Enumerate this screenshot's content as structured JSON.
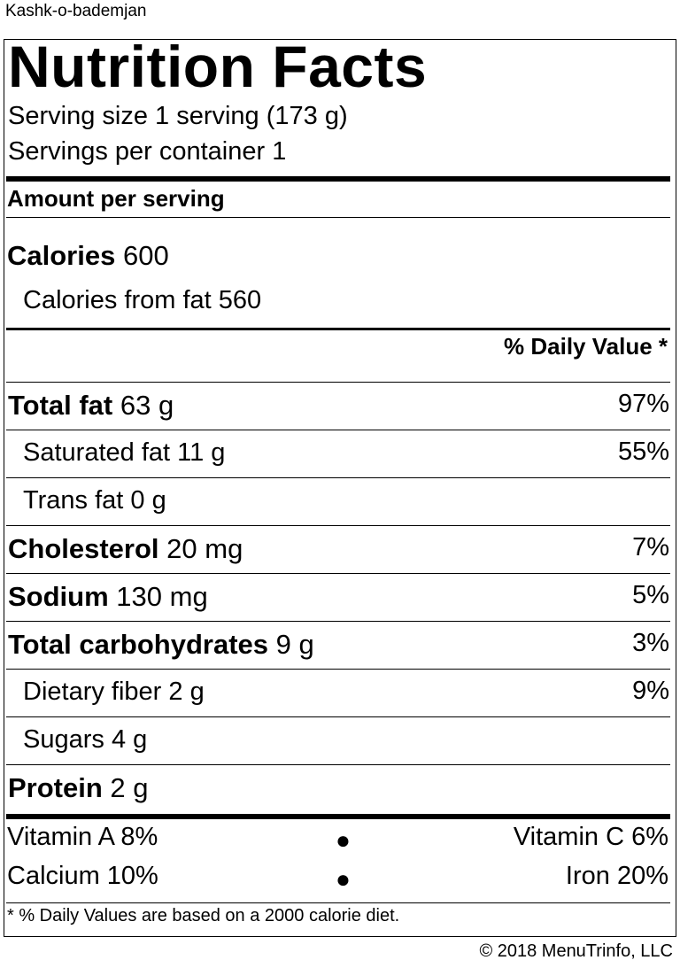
{
  "recipe_name": "Kashk-o-bademjan",
  "title": "Nutrition Facts",
  "serving_size": "Serving size 1 serving (173 g)",
  "servings_per_container": "Servings per container 1",
  "amount_per_serving": "Amount per serving",
  "calories": {
    "label": "Calories",
    "value": "600"
  },
  "calories_from_fat": "Calories from fat 560",
  "daily_value_header": "% Daily Value *",
  "nutrients": [
    {
      "name": "Total fat",
      "amount": "63 g",
      "pct": "97%",
      "bold": true,
      "sub": false
    },
    {
      "name": "Saturated fat",
      "amount": "11 g",
      "pct": "55%",
      "bold": false,
      "sub": true
    },
    {
      "name": "Trans fat",
      "amount": "0 g",
      "pct": "",
      "bold": false,
      "sub": true
    },
    {
      "name": "Cholesterol",
      "amount": "20 mg",
      "pct": "7%",
      "bold": true,
      "sub": false
    },
    {
      "name": "Sodium",
      "amount": "130 mg",
      "pct": "5%",
      "bold": true,
      "sub": false
    },
    {
      "name": "Total carbohydrates",
      "amount": "9 g",
      "pct": "3%",
      "bold": true,
      "sub": false
    },
    {
      "name": "Dietary fiber",
      "amount": "2 g",
      "pct": "9%",
      "bold": false,
      "sub": true
    },
    {
      "name": "Sugars",
      "amount": "4 g",
      "pct": "",
      "bold": false,
      "sub": true
    },
    {
      "name": "Protein",
      "amount": "2 g",
      "pct": "",
      "bold": true,
      "sub": false
    }
  ],
  "vitamins": {
    "vitamin_a": "Vitamin A 8%",
    "vitamin_c": "Vitamin C 6%",
    "calcium": "Calcium 10%",
    "iron": "Iron 20%"
  },
  "footnote": "* % Daily Values are based on a 2000 calorie diet.",
  "copyright": "© 2018 MenuTrinfo, LLC"
}
